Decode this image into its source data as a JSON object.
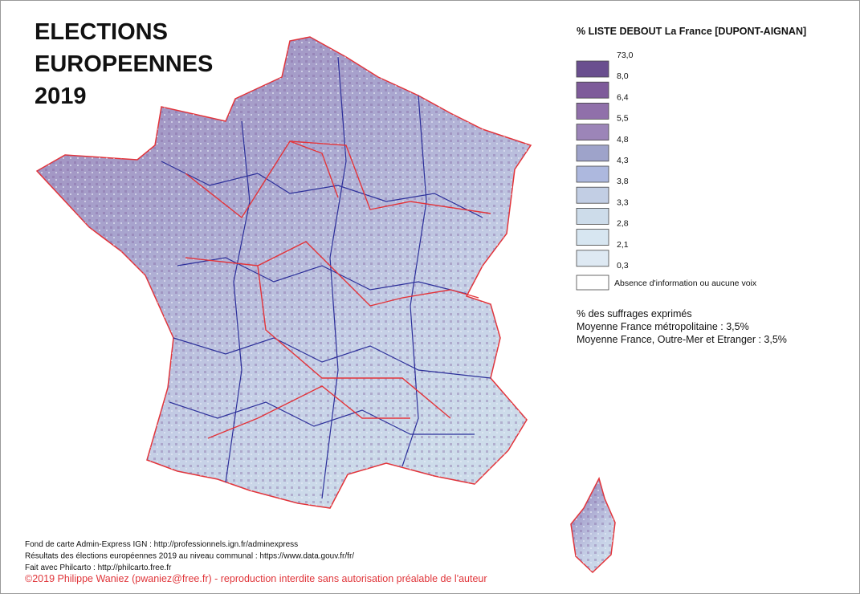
{
  "title": [
    "ELECTIONS",
    "EUROPEENNES",
    "2019"
  ],
  "legend": {
    "title": "% LISTE DEBOUT La France [DUPONT-AIGNAN]",
    "breaks": [
      "73,0",
      "8,0",
      "6,4",
      "5,5",
      "4,8",
      "4,3",
      "3,8",
      "3,3",
      "2,8",
      "2,1",
      "0,3"
    ],
    "colors": [
      "#6a4f8f",
      "#7e5b9a",
      "#9070aa",
      "#9c85b8",
      "#9ea3ca",
      "#adb8de",
      "#c2cee4",
      "#cddcea",
      "#d7e6f1",
      "#dee9f3"
    ],
    "no_data": "Absence d'information ou aucune voix"
  },
  "notes": [
    "% des suffrages exprimés",
    "Moyenne France métropolitaine : 3,5%",
    "Moyenne France, Outre-Mer et Etranger : 3,5%"
  ],
  "sources": [
    "Fond de carte Admin-Express IGN : http://professionnels.ign.fr/adminexpress",
    "Résultats des élections européennes 2019 au niveau communal : https://www.data.gouv.fr/fr/",
    "Fait avec Philcarto : http://philcarto.free.fr"
  ],
  "copyright": "©2019 Philippe Waniez (pwaniez@free.fr) - reproduction interdite sans autorisation préalable de l'auteur"
}
